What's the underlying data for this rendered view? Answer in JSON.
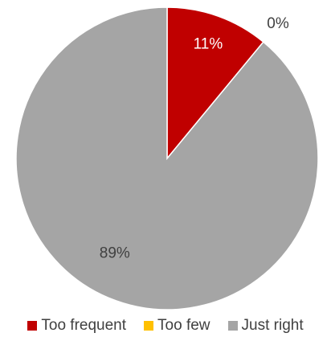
{
  "chart_data": {
    "type": "pie",
    "title": "",
    "legend_position": "bottom",
    "slices": [
      {
        "name": "Too frequent",
        "value": 11,
        "label": "11%",
        "color": "#C00000",
        "label_color": "#ffffff"
      },
      {
        "name": "Too few",
        "value": 0,
        "label": "0%",
        "color": "#FFC000",
        "label_color": "#404040"
      },
      {
        "name": "Just right",
        "value": 89,
        "label": "89%",
        "color": "#A5A5A5",
        "label_color": "#404040"
      }
    ]
  }
}
